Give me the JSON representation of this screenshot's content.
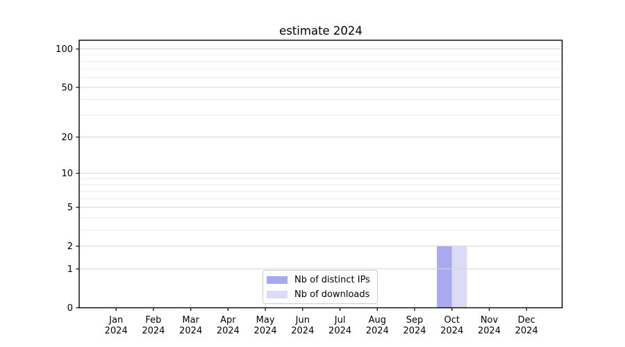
{
  "chart_data": {
    "type": "bar",
    "title": "estimate 2024",
    "categories": [
      {
        "month": "Jan",
        "year": "2024"
      },
      {
        "month": "Feb",
        "year": "2024"
      },
      {
        "month": "Mar",
        "year": "2024"
      },
      {
        "month": "Apr",
        "year": "2024"
      },
      {
        "month": "May",
        "year": "2024"
      },
      {
        "month": "Jun",
        "year": "2024"
      },
      {
        "month": "Jul",
        "year": "2024"
      },
      {
        "month": "Aug",
        "year": "2024"
      },
      {
        "month": "Sep",
        "year": "2024"
      },
      {
        "month": "Oct",
        "year": "2024"
      },
      {
        "month": "Nov",
        "year": "2024"
      },
      {
        "month": "Dec",
        "year": "2024"
      }
    ],
    "series": [
      {
        "name": "Nb of distinct IPs",
        "color": "#a9a9f0",
        "values": [
          0,
          0,
          0,
          0,
          0,
          0,
          0,
          0,
          0,
          2,
          0,
          0
        ]
      },
      {
        "name": "Nb of downloads",
        "color": "#dbdbf8",
        "values": [
          0,
          0,
          0,
          0,
          0,
          0,
          0,
          0,
          0,
          2,
          0,
          0
        ]
      }
    ],
    "yscale": "log1p",
    "ylim": [
      0,
      117
    ],
    "yticks": [
      0,
      1,
      2,
      5,
      10,
      20,
      50,
      100
    ],
    "minor_yticks": [
      3,
      4,
      6,
      7,
      8,
      9,
      30,
      40,
      60,
      70,
      80,
      90
    ],
    "grid": {
      "major_color": "#d6d6d6",
      "minor_color": "#ededed",
      "grid_above_bars": true
    },
    "axis_color": "#000000",
    "legend_position": "lower center"
  }
}
